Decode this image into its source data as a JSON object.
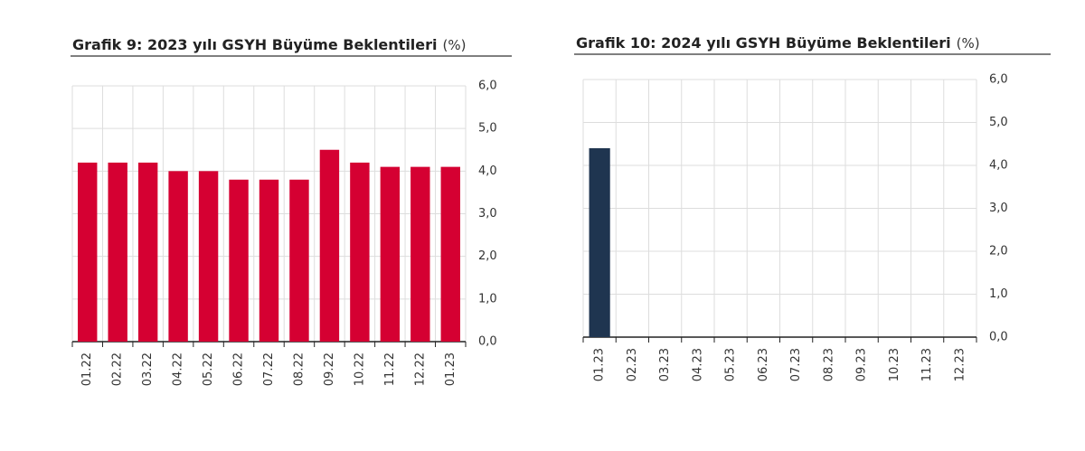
{
  "chart_data": [
    {
      "type": "bar",
      "title": "Grafik 9: 2023 yılı GSYH Büyüme Beklentileri",
      "unit": "(%)",
      "categories": [
        "01.22",
        "02.22",
        "03.22",
        "04.22",
        "05.22",
        "06.22",
        "07.22",
        "08.22",
        "09.22",
        "10.22",
        "11.22",
        "12.22",
        "01.23"
      ],
      "values": [
        4.2,
        4.2,
        4.2,
        4.0,
        4.0,
        3.8,
        3.8,
        3.8,
        4.5,
        4.2,
        4.1,
        4.1,
        4.1
      ],
      "color": "#d50032",
      "ylim": [
        0,
        6
      ],
      "yticks": [
        {
          "value": 0,
          "label": "0,0"
        },
        {
          "value": 1,
          "label": "1,0"
        },
        {
          "value": 2,
          "label": "2,0"
        },
        {
          "value": 3,
          "label": "3,0"
        },
        {
          "value": 4,
          "label": "4,0"
        },
        {
          "value": 5,
          "label": "5,0"
        },
        {
          "value": 6,
          "label": "6,0"
        }
      ],
      "grid": true
    },
    {
      "type": "bar",
      "title": "Grafik 10: 2024 yılı GSYH Büyüme Beklentileri",
      "unit": "(%)",
      "categories": [
        "01.23",
        "02.23",
        "03.23",
        "04.23",
        "05.23",
        "06.23",
        "07.23",
        "08.23",
        "09.23",
        "10.23",
        "11.23",
        "12.23"
      ],
      "values": [
        4.4,
        null,
        null,
        null,
        null,
        null,
        null,
        null,
        null,
        null,
        null,
        null
      ],
      "color": "#1f3550",
      "ylim": [
        0,
        6
      ],
      "yticks": [
        {
          "value": 0,
          "label": "0,0"
        },
        {
          "value": 1,
          "label": "1,0"
        },
        {
          "value": 2,
          "label": "2,0"
        },
        {
          "value": 3,
          "label": "3,0"
        },
        {
          "value": 4,
          "label": "4,0"
        },
        {
          "value": 5,
          "label": "5,0"
        },
        {
          "value": 6,
          "label": "6,0"
        }
      ],
      "grid": true
    }
  ]
}
